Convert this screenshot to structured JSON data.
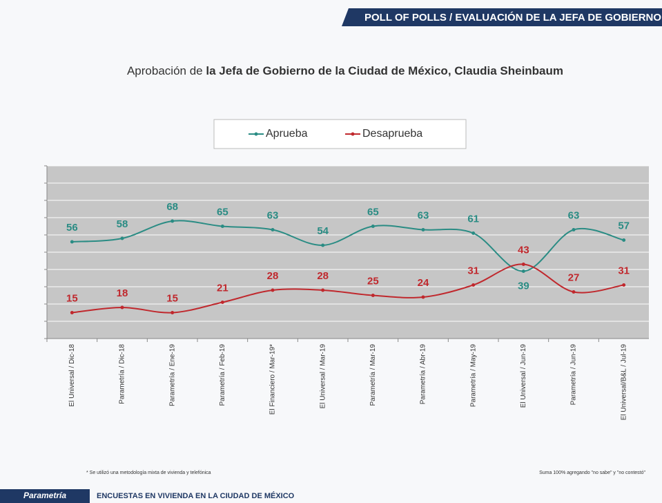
{
  "header": "POLL OF POLLS / EVALUACIÓN DE LA JEFA DE GOBIERNO",
  "chart_data": {
    "type": "line",
    "title": {
      "regular": "Aprobación de",
      "bold": "la Jefa de Gobierno de la Ciudad de México, Claudia Sheinbaum"
    },
    "categories": [
      "El Universal / Dic-18",
      "Parametría / Dic-18",
      "Parametría / Ene-19",
      "Parametría / Feb-19",
      "El Financiero / Mar-19*",
      "El Universal / Mar-19",
      "Parametría / Mar-19",
      "Parametría / Abr-19",
      "Parametría / May-19",
      "El Universal / Jun-19",
      "Parametría / Jun-19",
      "El Universal/B&L / Jul-19"
    ],
    "series": [
      {
        "name": "Aprueba",
        "color": "#2a8c84",
        "values": [
          56,
          58,
          68,
          65,
          63,
          54,
          65,
          63,
          61,
          39,
          63,
          57
        ]
      },
      {
        "name": "Desaprueba",
        "color": "#c0282d",
        "values": [
          15,
          18,
          15,
          21,
          28,
          28,
          25,
          24,
          31,
          43,
          27,
          31
        ]
      }
    ],
    "ylim": [
      0,
      100
    ],
    "yticks": [
      0,
      10,
      20,
      30,
      40,
      50,
      60,
      70,
      80,
      90,
      100
    ],
    "grid": true,
    "legend": "top",
    "notes": [
      "* Se utilizó una metodología mixta de vivienda y telefónica",
      "Suma 100% agregando \"no sabe\" y \"no contestó\""
    ]
  },
  "footer": {
    "brand": "Parametría",
    "text": "ENCUESTAS EN VIVIENDA EN LA CIUDAD DE MÉXICO"
  }
}
